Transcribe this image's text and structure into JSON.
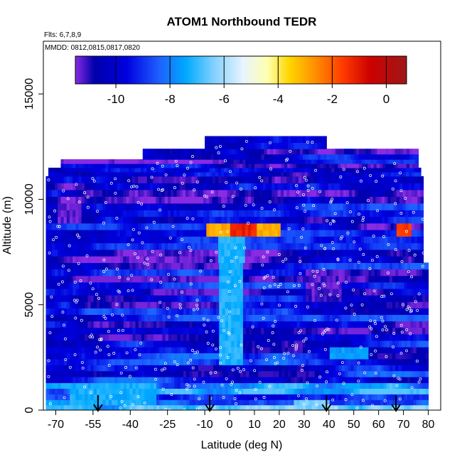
{
  "chart_data": {
    "type": "heatmap",
    "title": "ATOM1 Northbound TEDR",
    "subtitle_flights": "Flts: 6,7,8,9",
    "subtitle_dates": "MMDD: 0812,0815,0817,0820",
    "xlabel": "Latitude (deg N)",
    "ylabel": "Altitude (m)",
    "xlim": [
      -75,
      85
    ],
    "ylim": [
      0,
      17500
    ],
    "x_ticks": [
      -70,
      -55,
      -40,
      -25,
      -10,
      0,
      10,
      20,
      30,
      40,
      50,
      60,
      70,
      80
    ],
    "x_tick_labels": [
      "-70",
      "-55",
      "-40",
      "-25",
      "-10",
      "0",
      "10",
      "20",
      "30",
      "40",
      "50",
      "60",
      "70",
      "80"
    ],
    "y_ticks": [
      0,
      5000,
      10000,
      15000
    ],
    "y_tick_labels": [
      "0",
      "5000",
      "10000",
      "15000"
    ],
    "colorbar": {
      "range": [
        -11.5,
        0.75
      ],
      "ticks": [
        -10,
        -8,
        -6,
        -4,
        -2,
        0
      ],
      "tick_labels": [
        "-10",
        "-8",
        "-6",
        "-4",
        "-2",
        "0"
      ],
      "gradient": [
        {
          "v": -11.5,
          "color": "#8a2be2"
        },
        {
          "v": -10.8,
          "color": "#0000aa"
        },
        {
          "v": -9.6,
          "color": "#0000e0"
        },
        {
          "v": -8.4,
          "color": "#1e60ff"
        },
        {
          "v": -7.4,
          "color": "#00aaff"
        },
        {
          "v": -6.4,
          "color": "#7fd0ff"
        },
        {
          "v": -5.3,
          "color": "#e8f4ff"
        },
        {
          "v": -4.4,
          "color": "#ffffb0"
        },
        {
          "v": -3.6,
          "color": "#ffd700"
        },
        {
          "v": -2.6,
          "color": "#ff8c00"
        },
        {
          "v": -1.6,
          "color": "#ff3a00"
        },
        {
          "v": -0.6,
          "color": "#cc0000"
        },
        {
          "v": 0.75,
          "color": "#a01818"
        }
      ]
    },
    "profile_markers_lat": [
      -53,
      -8,
      39,
      67
    ],
    "altitude_bands": [
      {
        "alt": [
          0,
          500
        ],
        "lat": [
          -74,
          80
        ],
        "base": -7.6
      },
      {
        "alt": [
          500,
          1300
        ],
        "lat": [
          -74,
          80
        ],
        "base": -8.3
      },
      {
        "alt": [
          1300,
          3000
        ],
        "lat": [
          -74,
          80
        ],
        "base": -9.6
      },
      {
        "alt": [
          3000,
          7000
        ],
        "lat": [
          -74,
          80
        ],
        "base": -9.9
      },
      {
        "alt": [
          7000,
          9500
        ],
        "lat": [
          -74,
          78
        ],
        "base": -10.2
      },
      {
        "alt": [
          9500,
          11100
        ],
        "lat": [
          -74,
          78
        ],
        "base": -10.0
      },
      {
        "alt": [
          11100,
          11500
        ],
        "lat": [
          -73,
          77
        ],
        "base": -10.3
      },
      {
        "alt": [
          11500,
          11900
        ],
        "lat": [
          -68,
          76
        ],
        "base": -10.4
      },
      {
        "alt": [
          11900,
          12400
        ],
        "lat": [
          -35,
          76
        ],
        "base": -10.3
      },
      {
        "alt": [
          12400,
          13000
        ],
        "lat": [
          -10,
          39
        ],
        "base": -10.6
      }
    ],
    "features": [
      {
        "lat": [
          -5,
          5
        ],
        "alt": [
          2000,
          8500
        ],
        "v": -7.2
      },
      {
        "lat": [
          -65,
          -30
        ],
        "alt": [
          200,
          1300
        ],
        "v": -7.3
      },
      {
        "lat": [
          -10,
          20
        ],
        "alt": [
          8200,
          8600
        ],
        "v": -3.0
      },
      {
        "lat": [
          0,
          10
        ],
        "alt": [
          8200,
          8600
        ],
        "v": -1.2
      },
      {
        "lat": [
          67,
          73
        ],
        "alt": [
          8200,
          8600
        ],
        "v": -1.5
      },
      {
        "lat": [
          -40,
          -20
        ],
        "alt": [
          5800,
          6000
        ],
        "v": -7.8
      },
      {
        "lat": [
          20,
          30
        ],
        "alt": [
          2600,
          3300
        ],
        "v": -11.0
      },
      {
        "lat": [
          -70,
          -60
        ],
        "alt": [
          8800,
          10000
        ],
        "v": -11.3
      },
      {
        "lat": [
          30,
          45
        ],
        "alt": [
          5000,
          6500
        ],
        "v": -11.2
      },
      {
        "lat": [
          40,
          55
        ],
        "alt": [
          2400,
          3000
        ],
        "v": -7.6
      },
      {
        "lat": [
          25,
          40
        ],
        "alt": [
          0,
          400
        ],
        "v": -6.5
      }
    ]
  }
}
